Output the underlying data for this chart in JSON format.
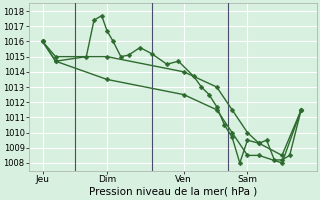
{
  "bg_color": "#d8f0e0",
  "plot_bg_color": "#d8f0e0",
  "grid_color": "#ffffff",
  "line_color": "#2d6a2d",
  "vline_color": "#4a4a6a",
  "ylim": [
    1007.5,
    1018.5
  ],
  "yticks": [
    1008,
    1009,
    1010,
    1011,
    1012,
    1013,
    1014,
    1015,
    1016,
    1017,
    1018
  ],
  "xlabel": "Pression niveau de la mer( hPa )",
  "xtick_labels": [
    "Jeu",
    "Dim",
    "Ven",
    "Sam"
  ],
  "xtick_positions": [
    0.08,
    0.92,
    1.92,
    2.75
  ],
  "vline_positions": [
    0.5,
    1.5,
    2.5
  ],
  "day_boundaries": [
    0.5,
    1.5,
    2.5
  ],
  "series1_x": [
    0.08,
    0.25,
    0.65,
    0.75,
    0.85,
    0.92,
    1.0,
    1.1,
    1.2,
    1.35,
    1.5,
    1.7,
    1.85,
    2.05,
    2.15,
    2.25,
    2.35,
    2.45,
    2.55,
    2.65,
    2.75,
    2.9,
    3.0,
    3.1,
    3.2,
    3.3,
    3.45
  ],
  "series1_y": [
    1016.0,
    1014.7,
    1015.0,
    1017.4,
    1017.7,
    1016.7,
    1016.0,
    1015.0,
    1015.1,
    1015.6,
    1015.2,
    1014.5,
    1014.7,
    1013.7,
    1013.0,
    1012.5,
    1011.7,
    1010.5,
    1009.7,
    1008.0,
    1009.5,
    1009.3,
    1009.5,
    1008.2,
    1008.2,
    1008.5,
    1011.5
  ],
  "series2_x": [
    0.08,
    0.25,
    0.92,
    1.92,
    2.35,
    2.55,
    2.75,
    2.9,
    3.2,
    3.45
  ],
  "series2_y": [
    1016.0,
    1015.0,
    1015.0,
    1014.0,
    1013.0,
    1011.5,
    1010.0,
    1009.3,
    1008.5,
    1011.5
  ],
  "series3_x": [
    0.08,
    0.25,
    0.92,
    1.92,
    2.35,
    2.55,
    2.75,
    2.9,
    3.2,
    3.45
  ],
  "series3_y": [
    1016.0,
    1014.7,
    1013.5,
    1012.5,
    1011.5,
    1010.0,
    1008.5,
    1008.5,
    1008.0,
    1011.5
  ],
  "xlim": [
    -0.1,
    3.65
  ],
  "marker_size": 2.5,
  "linewidth": 1.0,
  "xlabel_fontsize": 7.5,
  "ytick_fontsize": 6,
  "xtick_fontsize": 6.5
}
